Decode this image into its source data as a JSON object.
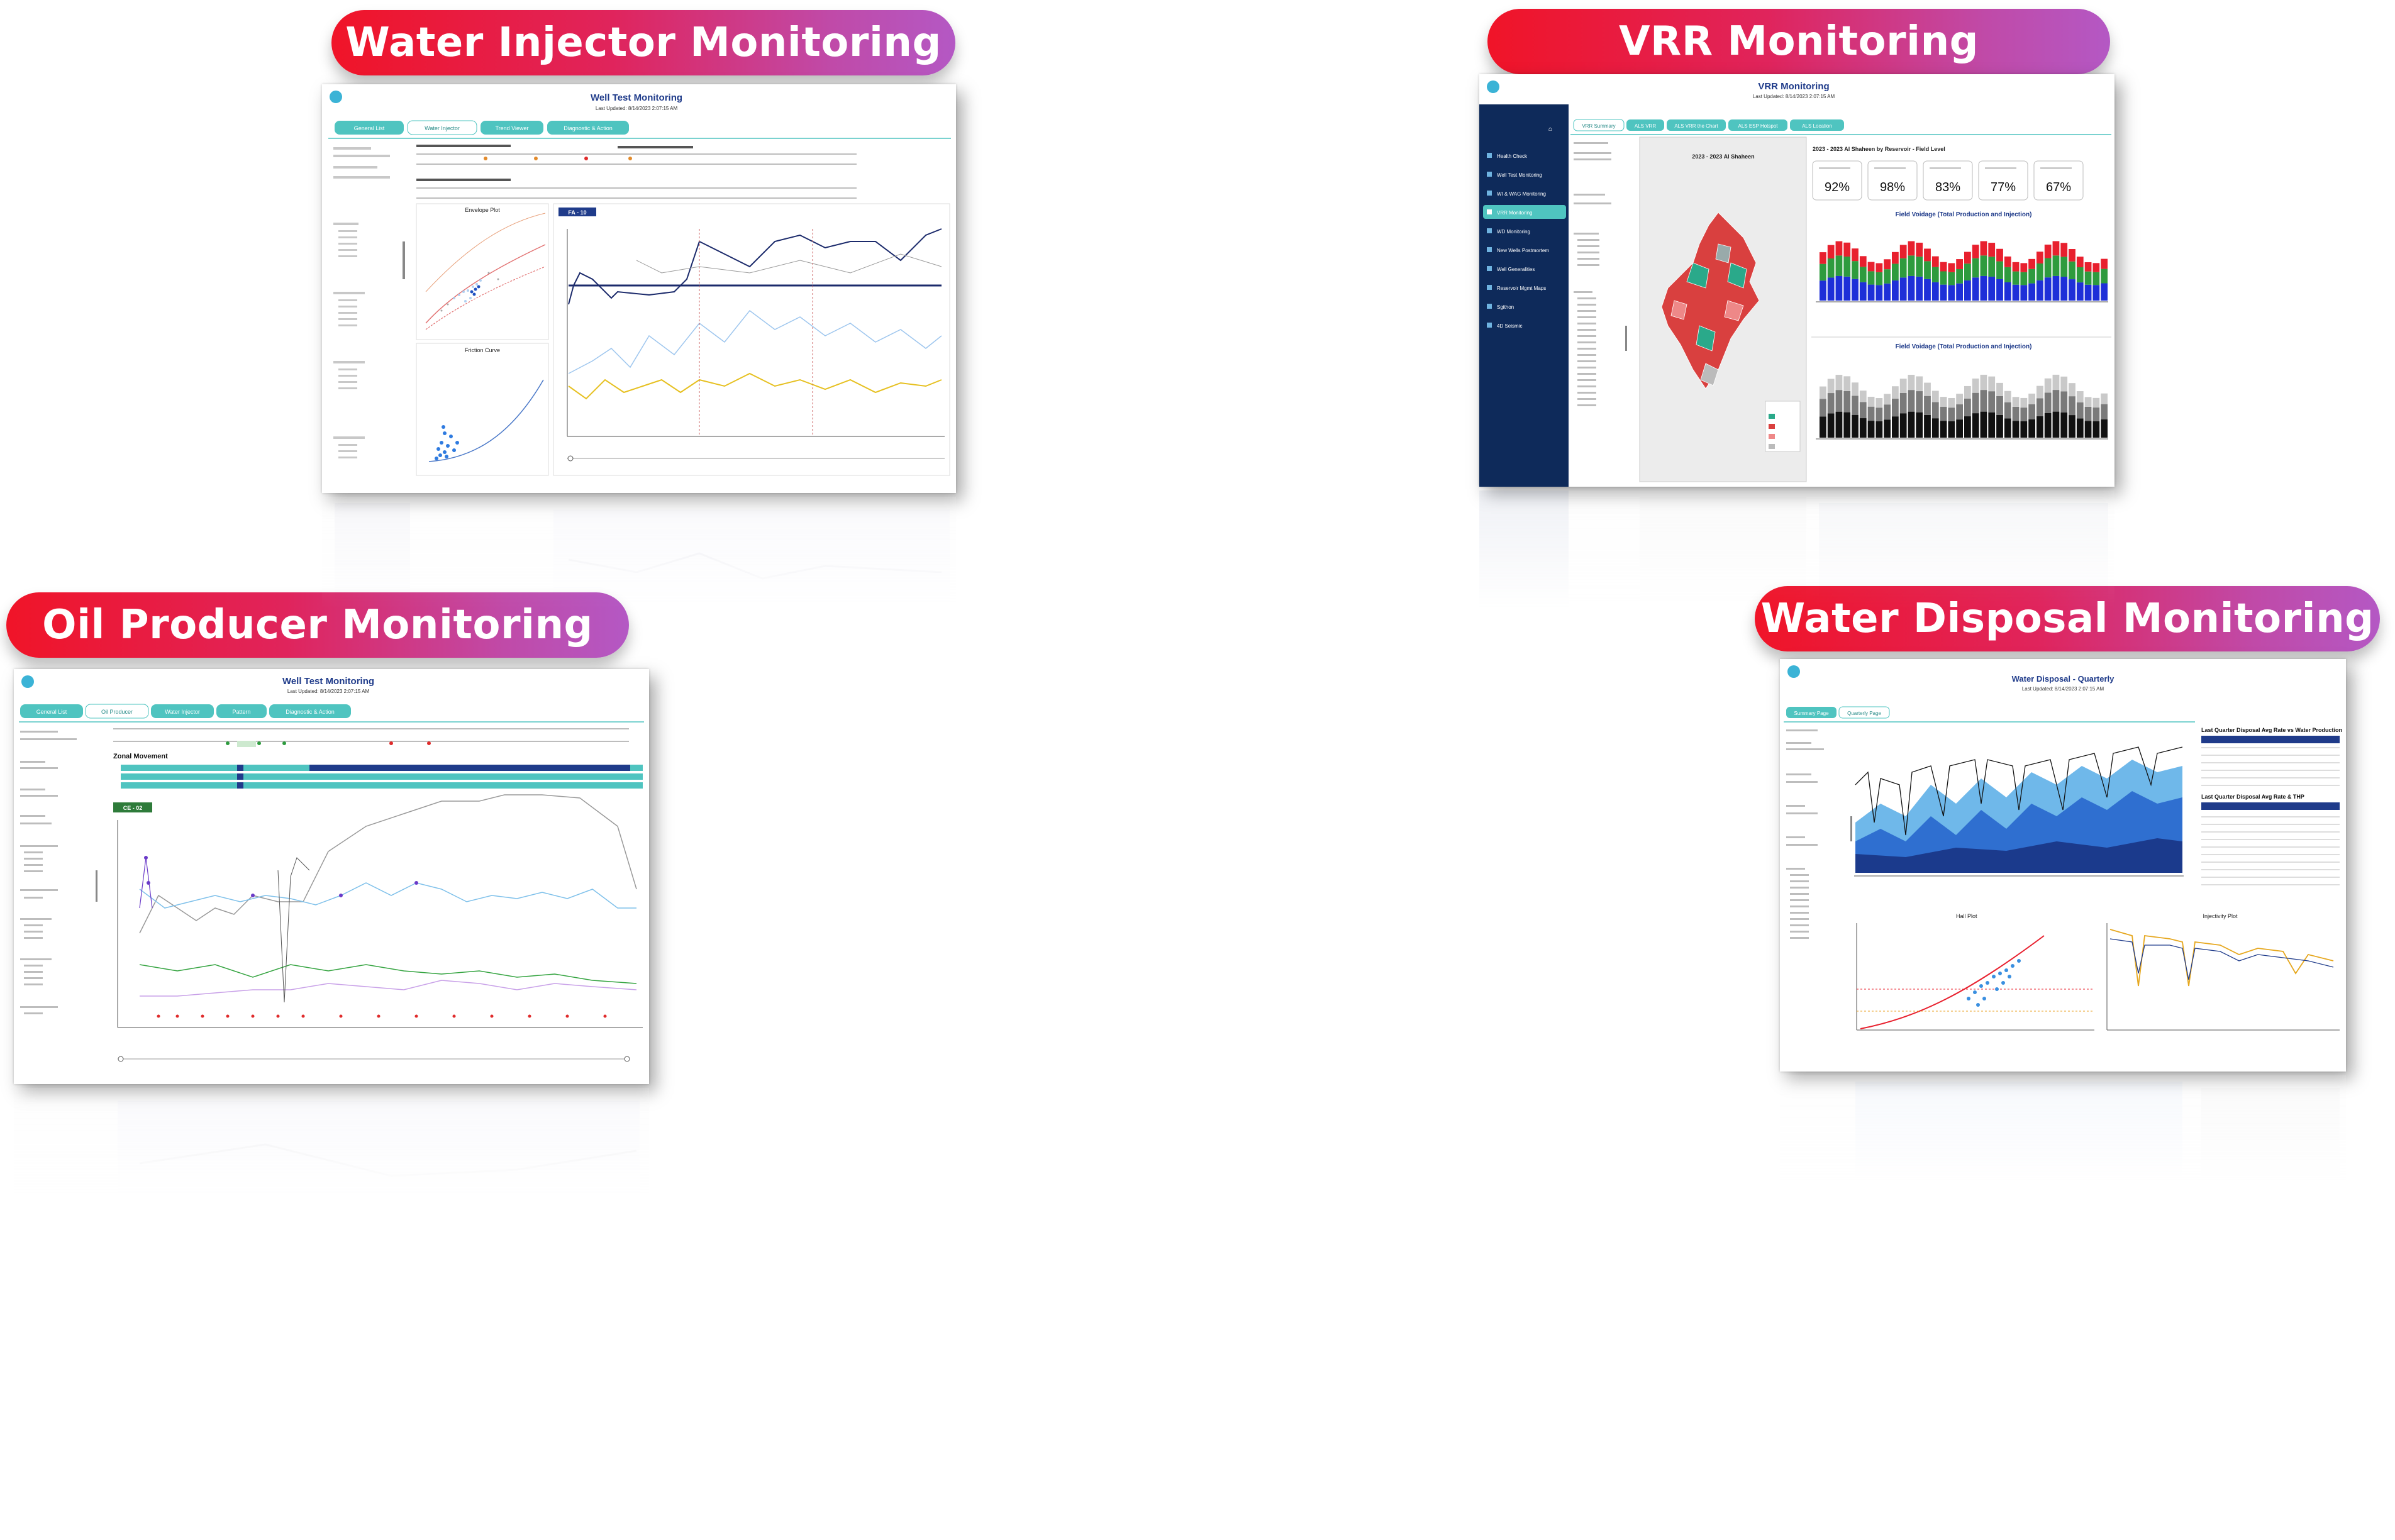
{
  "panels": {
    "water_injector": {
      "heading": "Water Injector Monitoring",
      "title": "Well Test Monitoring",
      "updated": "Last Updated: 8/14/2023 2:07:15 AM",
      "tabs": [
        "General List",
        "Water Injector",
        "Trend Viewer",
        "Diagnostic & Action"
      ],
      "chart1_title": "Envelope Plot",
      "chart2_title": "Friction Curve",
      "chart3_badge": "FA - 10"
    },
    "vrr": {
      "heading": "VRR Monitoring",
      "title": "VRR Monitoring",
      "updated": "Last Updated: 8/14/2023 2:07:15 AM",
      "tabs": [
        "VRR Summary",
        "ALS VRR",
        "ALS VRR the Chart",
        "ALS ESP Hotspot",
        "ALS Location"
      ],
      "nav": [
        "Health Check",
        "Well Test Monitoring",
        "WI & WAG Monitoring",
        "VRR Monitoring",
        "WD Monitoring",
        "New Wells Postmortem",
        "Well Generalities",
        "Reservoir Mgmt Maps",
        "Sgithon",
        "4D Seismic"
      ],
      "map_title": "2023 - 2023 Al Shaheen",
      "section_title": "2023 - 2023 Al Shaheen by Reservoir - Field Level",
      "kpis": [
        "92%",
        "98%",
        "83%",
        "77%",
        "67%"
      ],
      "chart1_title": "Field Voidage (Total Production and Injection)",
      "chart2_title": "Field Voidage (Total Production and Injection)"
    },
    "oil_producer": {
      "heading": "Oil Producer Monitoring",
      "title": "Well Test Monitoring",
      "updated": "Last Updated: 8/14/2023 2:07:15 AM",
      "tabs": [
        "General List",
        "Oil Producer",
        "Water Injector",
        "Pattern",
        "Diagnostic & Action"
      ],
      "section_title": "Zonal Movement",
      "badge": "CE - 02"
    },
    "water_disposal": {
      "heading": "Water Disposal Monitoring",
      "title": "Water Disposal - Quarterly",
      "updated": "Last Updated: 8/14/2023 2:07:15 AM",
      "tabs": [
        "Summary Page",
        "Quarterly Page"
      ],
      "table1_title": "Last Quarter Disposal Avg Rate vs Water Production",
      "table2_title": "Last Quarter Disposal Avg Rate & THP",
      "chart2_title": "Hall Plot",
      "chart3_title": "Injectivity Plot"
    }
  },
  "colors": {
    "teal": "#4fc4c0",
    "navy": "#1f3b8a",
    "accent_red": "#e8202e",
    "accent_purple": "#b458c4"
  }
}
